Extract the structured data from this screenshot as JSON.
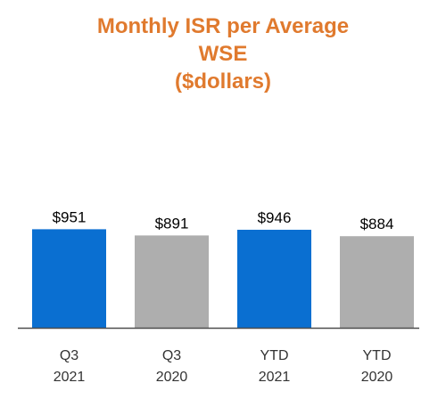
{
  "chart_data": {
    "type": "bar",
    "title_lines": [
      "Monthly ISR per Average",
      "WSE",
      "($dollars)"
    ],
    "categories": [
      [
        "Q3",
        "2021"
      ],
      [
        "Q3",
        "2020"
      ],
      [
        "YTD",
        "2021"
      ],
      [
        "YTD",
        "2020"
      ]
    ],
    "values": [
      951,
      891,
      946,
      884
    ],
    "data_labels": [
      "$951",
      "$891",
      "$946",
      "$884"
    ],
    "ylim": [
      0,
      1000
    ],
    "grid": false,
    "legend": "none",
    "colors": {
      "title": "#E07A2E",
      "bar_current": "#0A6FD1",
      "bar_prior": "#AEAEAE",
      "axis": "#4D4D4D"
    },
    "bar_colors": [
      "#0A6FD1",
      "#AEAEAE",
      "#0A6FD1",
      "#AEAEAE"
    ]
  }
}
